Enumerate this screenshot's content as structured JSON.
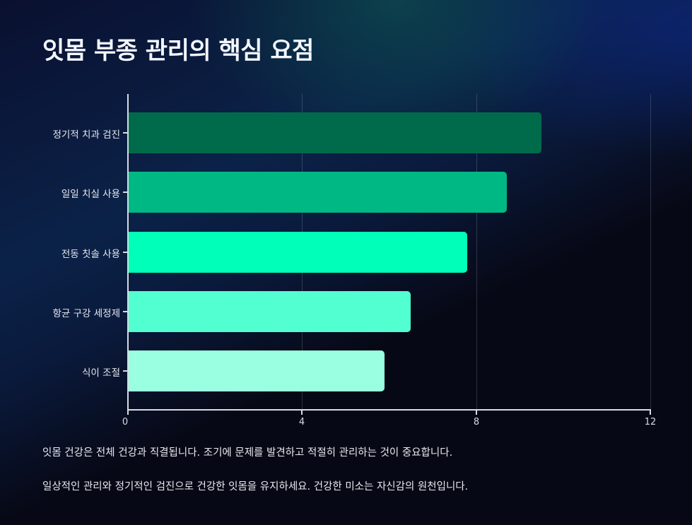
{
  "title": "잇몸 부종 관리의 핵심 요점",
  "chart_data": {
    "type": "bar",
    "orientation": "horizontal",
    "title": "잇몸 부종 관리의 핵심 요점",
    "xlabel": "",
    "ylabel": "",
    "categories": [
      "정기적 치과 검진",
      "일일 치실 사용",
      "전동 칫솔 사용",
      "항균 구강 세정제",
      "식이 조절"
    ],
    "values": [
      9.5,
      8.7,
      7.8,
      6.5,
      5.9
    ],
    "colors": [
      "#006b4a",
      "#00b884",
      "#00ffb8",
      "#52ffd0",
      "#99ffe0"
    ],
    "xlim": [
      0,
      12
    ],
    "x_ticks": [
      "0",
      "4",
      "8",
      "12"
    ],
    "grid": {
      "vertical": true,
      "horizontal": false
    },
    "legend": null
  },
  "captions": [
    "잇몸 건강은 전체 건강과 직결됩니다. 조기에 문제를 발견하고 적절히 관리하는 것이 중요합니다.",
    "일상적인 관리와 정기적인 검진으로 건강한 잇몸을 유지하세요. 건강한 미소는 자신감의 원천입니다."
  ]
}
